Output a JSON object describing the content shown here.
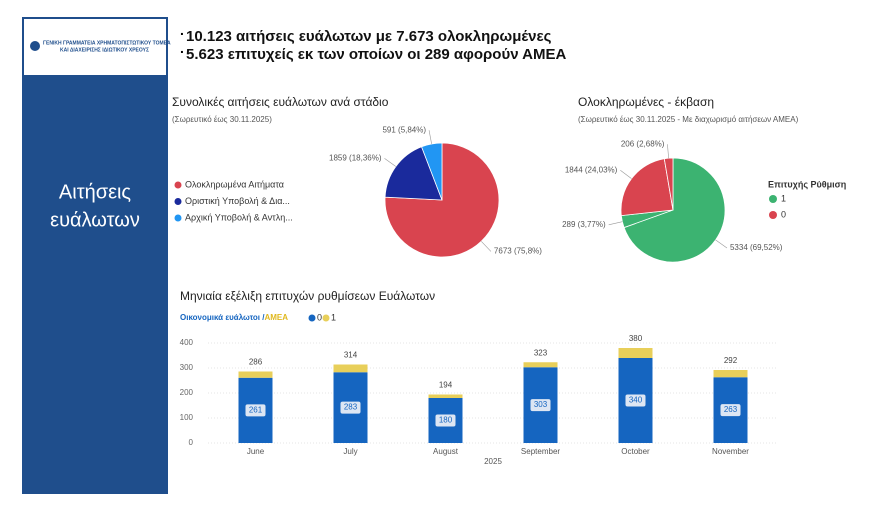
{
  "header": {
    "logo_text": [
      "ΓΕΝΙΚΗ ΓΡΑΜΜΑΤΕΙΑ ΧΡΗΜΑΤΟΠΙΣΤΩΤΙΚΟΥ ΤΟΜΕΑ",
      "ΚΑΙ ΔΙΑΧΕΙΡΙΣΗΣ ΙΔΙΩΤΙΚΟΥ ΧΡΕΟΥΣ"
    ],
    "sidebar_title": [
      "Αιτήσεις",
      "ευάλωτων"
    ],
    "bullets": [
      "10.123 αιτήσεις ευάλωτων με 7.673 ολοκληρωμένες",
      "5.623 επιτυχείς εκ των οποίων οι 289 αφορούν ΑΜΕΑ"
    ]
  },
  "chart_data": [
    {
      "type": "pie",
      "title": "Συνολικές αιτήσεις ευάλωτων ανά στάδιο",
      "subtitle": "(Σωρευτικό έως 30.11.2025)",
      "categories": [
        "Ολοκληρωμένα Αιτήματα",
        "Οριστική Υποβολή & Δια...",
        "Αρχική Υποβολή & Αντλη..."
      ],
      "values": [
        7673,
        1859,
        591
      ],
      "value_labels": [
        "7673 (75,8%)",
        "1859 (18,36%)",
        "591 (5,84%)"
      ],
      "colors": [
        "#d9444f",
        "#1a2a9c",
        "#2196f3"
      ]
    },
    {
      "type": "pie",
      "title": "Ολοκληρωμένες - έκβαση",
      "subtitle": "(Σωρευτικό έως 30.11.2025 - Με διαχωρισμό αιτήσεων ΑΜΕΑ)",
      "legend_title": "Επιτυχής Ρύθμιση",
      "series": [
        {
          "name": "1",
          "color": "#3cb371",
          "values": [
            5334,
            289
          ],
          "value_labels": [
            "5334 (69,52%)",
            "289 (3,77%)"
          ]
        },
        {
          "name": "0",
          "color": "#d9444f",
          "values": [
            1844,
            206
          ],
          "value_labels": [
            "1844 (24,03%)",
            "206 (2,68%)"
          ]
        }
      ]
    },
    {
      "type": "stacked_bar",
      "title": "Μηνιαία εξέλιξη επιτυχών ρυθμίσεων Ευάλωτων",
      "legend_title": [
        "Οικονομικά ευάλωτοι / ",
        "ΑΜΕΑ"
      ],
      "categories": [
        "June",
        "July",
        "August",
        "September",
        "October",
        "November"
      ],
      "x_label": "2025",
      "series": [
        {
          "name": "0",
          "color": "#1565c0",
          "values": [
            261,
            283,
            180,
            303,
            340,
            263
          ]
        },
        {
          "name": "1",
          "color": "#e8cf5a",
          "values": [
            25,
            31,
            14,
            20,
            40,
            29
          ]
        }
      ],
      "totals": [
        286,
        314,
        194,
        323,
        380,
        292
      ],
      "ylim": [
        0,
        400
      ],
      "yticks": [
        0,
        100,
        200,
        300,
        400
      ],
      "grid": true
    }
  ]
}
